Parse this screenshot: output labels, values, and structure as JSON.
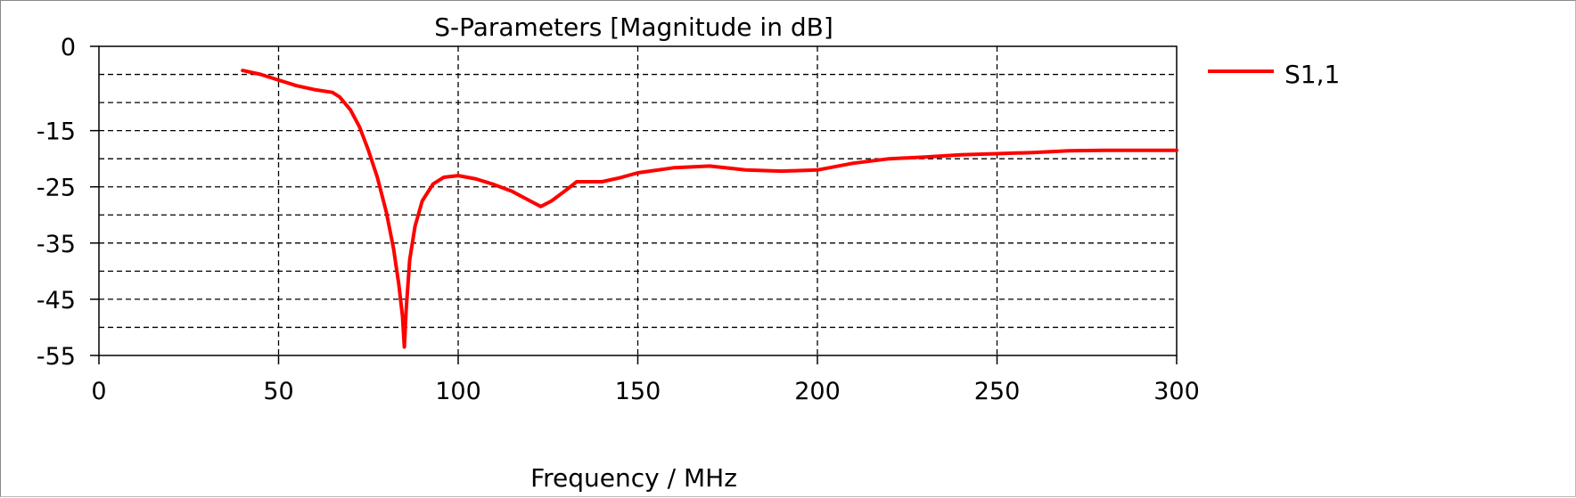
{
  "chart_data": {
    "type": "line",
    "title": "S-Parameters [Magnitude in dB]",
    "xlabel": "Frequency / MHz",
    "ylabel": "",
    "xlim": [
      0,
      300
    ],
    "ylim": [
      -55,
      0
    ],
    "x_ticks": [
      0,
      50,
      100,
      150,
      200,
      250,
      300
    ],
    "x_tick_labels": [
      "0",
      "50",
      "100",
      "150",
      "200",
      "250",
      "300"
    ],
    "y_ticks": [
      0,
      -15,
      -25,
      -35,
      -45,
      -55
    ],
    "y_tick_labels": [
      "0",
      "-15",
      "-25",
      "-35",
      "-45",
      "-55"
    ],
    "y_gridlines": [
      -5,
      -10,
      -15,
      -20,
      -25,
      -30,
      -35,
      -40,
      -45,
      -50
    ],
    "x_gridlines": [
      50,
      100,
      150,
      200,
      250
    ],
    "grid": true,
    "grid_style": "dashed",
    "legend_position": "top-right",
    "series": [
      {
        "name": "S1,1",
        "color": "#ff0000",
        "x": [
          40,
          45,
          50,
          55,
          60,
          65,
          67,
          70,
          72.5,
          75,
          77.5,
          80,
          82,
          83.5,
          84.5,
          85,
          85.5,
          86.5,
          88,
          90,
          93,
          96,
          100,
          105,
          110,
          115,
          120,
          123,
          126,
          130,
          133,
          140,
          145,
          150,
          160,
          170,
          180,
          190,
          200,
          210,
          220,
          230,
          240,
          250,
          260,
          270,
          280,
          290,
          300
        ],
        "y": [
          -4.3,
          -5.0,
          -6.0,
          -7.0,
          -7.7,
          -8.2,
          -9.0,
          -11.3,
          -14.3,
          -18.5,
          -23.3,
          -29.5,
          -36,
          -42.5,
          -48,
          -53.5,
          -47,
          -38,
          -32,
          -27.5,
          -24.5,
          -23.3,
          -23.0,
          -23.6,
          -24.6,
          -25.8,
          -27.5,
          -28.5,
          -27.5,
          -25.6,
          -24.1,
          -24.1,
          -23.4,
          -22.5,
          -21.6,
          -21.3,
          -22.0,
          -22.2,
          -22.0,
          -20.8,
          -20.0,
          -19.7,
          -19.3,
          -19.1,
          -18.9,
          -18.6,
          -18.5,
          -18.5,
          -18.5
        ]
      }
    ]
  }
}
